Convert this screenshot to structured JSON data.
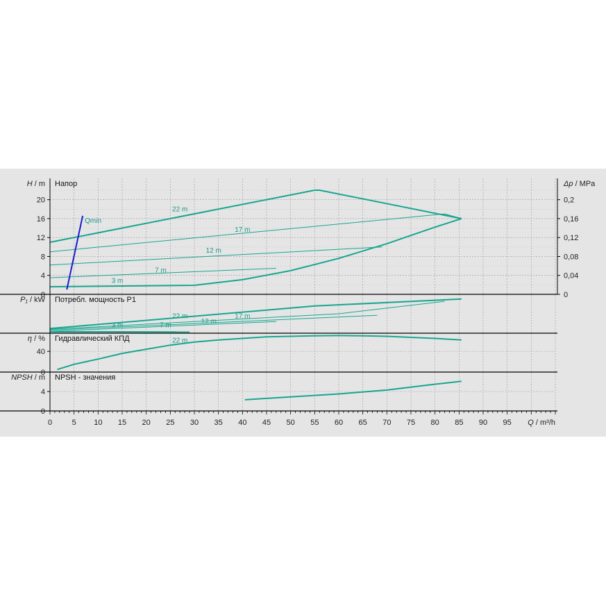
{
  "chart_data": {
    "type": "line",
    "colors": {
      "curve": "#17a58f",
      "qmin": "#1a1ad0",
      "grid": "#9a9a9a",
      "background": "#e5e5e5"
    },
    "x_axis": {
      "label_var": "Q",
      "label_unit": "/ m³/h",
      "ticks": [
        "0",
        "5",
        "10",
        "15",
        "20",
        "25",
        "30",
        "35",
        "40",
        "45",
        "50",
        "55",
        "60",
        "65",
        "70",
        "75",
        "80",
        "85",
        "90",
        "95"
      ],
      "range": [
        0,
        105
      ]
    },
    "panels": [
      {
        "id": "head",
        "title": "Напор",
        "ylabel_var": "H",
        "ylabel_unit": "/ m",
        "yticks": [
          "0",
          "4",
          "8",
          "12",
          "16",
          "20"
        ],
        "yrange": [
          0,
          24.5
        ],
        "y2label_var": "Δp",
        "y2label_unit": "/ MPa",
        "y2ticks": [
          "0",
          "0,04",
          "0,08",
          "0,12",
          "0,16",
          "0,2"
        ],
        "series": [
          {
            "name": "22 m",
            "label_at": [
              27,
              17.5
            ],
            "points": [
              [
                0,
                11
              ],
              [
                55,
                22
              ],
              [
                56,
                22
              ],
              [
                85.5,
                16
              ]
            ]
          },
          {
            "name": "17 m",
            "label_at": [
              40,
              13.2
            ],
            "points": [
              [
                0,
                9
              ],
              [
                82,
                17
              ],
              [
                85.5,
                16
              ]
            ]
          },
          {
            "name": "12 m",
            "label_at": [
              34,
              8.8
            ],
            "points": [
              [
                0,
                6.2
              ],
              [
                69,
                10
              ]
            ]
          },
          {
            "name": "7 m",
            "label_at": [
              23,
              4.6
            ],
            "points": [
              [
                0,
                3.5
              ],
              [
                47,
                5.5
              ]
            ]
          },
          {
            "name": "3 m",
            "label_at": [
              14,
              2.4
            ],
            "points": [
              [
                0,
                1.6
              ],
              [
                30,
                1.9
              ],
              [
                40,
                3.1
              ],
              [
                50,
                5
              ],
              [
                60,
                7.6
              ],
              [
                70,
                10.7
              ],
              [
                80,
                14.2
              ],
              [
                85.5,
                16
              ]
            ]
          }
        ],
        "qmin": {
          "label": "Qmin",
          "points": [
            [
              3.5,
              1
            ],
            [
              6.8,
              16.6
            ]
          ]
        }
      },
      {
        "id": "power",
        "title": "Потребл. мощность P1",
        "ylabel_var": "P₁",
        "ylabel_unit": "/ kW",
        "yticks": [],
        "yrange": [
          0,
          1
        ],
        "series": [
          {
            "name": "22 m",
            "label_at": [
              27,
              0.38
            ],
            "points": [
              [
                0,
                0.12
              ],
              [
                55,
                0.7
              ],
              [
                85.5,
                0.88
              ]
            ]
          },
          {
            "name": "17 m",
            "label_at": [
              40,
              0.38
            ],
            "points": [
              [
                0,
                0.1
              ],
              [
                60,
                0.5
              ],
              [
                82,
                0.82
              ]
            ]
          },
          {
            "name": "12 m",
            "label_at": [
              33,
              0.25
            ],
            "points": [
              [
                0,
                0.08
              ],
              [
                68,
                0.46
              ]
            ]
          },
          {
            "name": "7 m",
            "label_at": [
              24,
              0.15
            ],
            "points": [
              [
                0,
                0.05
              ],
              [
                47,
                0.3
              ]
            ]
          },
          {
            "name": "3 m",
            "label_at": [
              14,
              0.15
            ],
            "points": [
              [
                0,
                0.04
              ],
              [
                29,
                0.03
              ]
            ]
          }
        ]
      },
      {
        "id": "efficiency",
        "title": "Гидравлический КПД",
        "ylabel_var": "η",
        "ylabel_unit": "/ %",
        "yticks": [
          "0",
          "40"
        ],
        "yrange": [
          0,
          75
        ],
        "series": [
          {
            "name": "22 m",
            "label_at": [
              27,
              57
            ],
            "points": [
              [
                1.5,
                5
              ],
              [
                5,
                15
              ],
              [
                10,
                25
              ],
              [
                15,
                36
              ],
              [
                20,
                44
              ],
              [
                25,
                52
              ],
              [
                30,
                58
              ],
              [
                35,
                62
              ],
              [
                40,
                65
              ],
              [
                45,
                68
              ],
              [
                50,
                69
              ],
              [
                55,
                70
              ],
              [
                60,
                70.5
              ],
              [
                65,
                70
              ],
              [
                70,
                69
              ],
              [
                75,
                67
              ],
              [
                80,
                65
              ],
              [
                85.5,
                62
              ]
            ]
          }
        ]
      },
      {
        "id": "npsh",
        "title": "NPSH - значения",
        "ylabel_var": "NPSH",
        "ylabel_unit": "/ m",
        "yticks": [
          "0",
          "4"
        ],
        "yrange": [
          0,
          8
        ],
        "series": [
          {
            "name": "",
            "points": [
              [
                40.5,
                2.3
              ],
              [
                50,
                2.9
              ],
              [
                60,
                3.5
              ],
              [
                70,
                4.3
              ],
              [
                80,
                5.5
              ],
              [
                85.5,
                6.1
              ]
            ]
          }
        ]
      }
    ]
  }
}
